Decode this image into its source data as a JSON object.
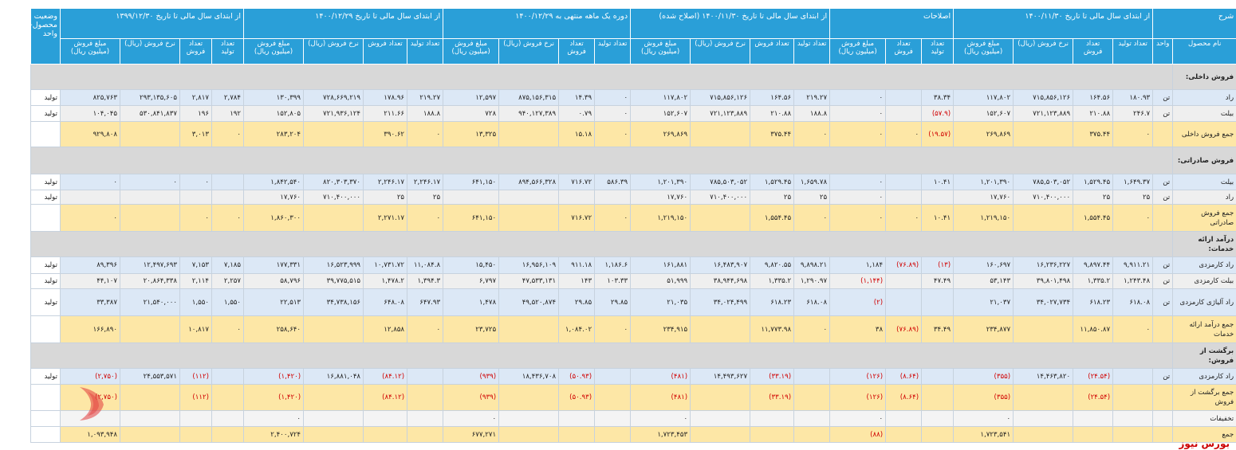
{
  "header": {
    "status": "وضعیت محصول- واحد",
    "description": "شرح",
    "groups": [
      "از ابتدای سال مالی تا تاریخ ۱۳۹۹/۱۲/۳۰",
      "از ابتدای سال مالی تا تاریخ ۱۴۰۰/۱۲/۲۹",
      "دوره یک ماهه منتهی به ۱۴۰۰/۱۲/۲۹",
      "از ابتدای سال مالی تا تاریخ ۱۴۰۰/۱۱/۳۰ (اصلاح شده)",
      "اصلاحات",
      "از ابتدای سال مالی تا تاریخ ۱۴۰۰/۱۱/۳۰"
    ],
    "columns": [
      "مبلغ فروش (میلیون ریال)",
      "نرخ فروش (ریال)",
      "تعداد فروش",
      "تعداد تولید",
      "مبلغ فروش (میلیون ریال)",
      "نرخ فروش (ریال)",
      "تعداد فروش",
      "تعداد تولید",
      "مبلغ فروش (میلیون ریال)",
      "نرخ فروش (ریال)",
      "تعداد فروش",
      "تعداد تولید",
      "مبلغ فروش (میلیون ریال)",
      "نرخ فروش (ریال)",
      "تعداد فروش",
      "تعداد تولید",
      "مبلغ فروش (میلیون ریال)",
      "تعداد فروش",
      "تعداد تولید",
      "مبلغ فروش (میلیون ریال)",
      "نرخ فروش (ریال)",
      "تعداد فروش",
      "تعداد تولید",
      "واحد",
      "نام محصول"
    ]
  },
  "table": {
    "rows": [
      [
        "فروش داخلی:"
      ],
      [
        "تولید",
        "۸۲۵,۷۶۳",
        "۲۹۳,۱۳۵,۶۰۵",
        "۲,۸۱۷",
        "۲,۷۸۴",
        "۱۳۰,۳۹۹",
        "۷۲۸,۶۶۹,۲۱۹",
        "۱۷۸.۹۶",
        "۲۱۹.۲۷",
        "۱۲,۵۹۷",
        "۸۷۵,۱۵۶,۳۱۵",
        "۱۴.۳۹",
        "۰",
        "۱۱۷,۸۰۲",
        "۷۱۵,۸۵۶,۱۲۶",
        "۱۶۴.۵۶",
        "۲۱۹.۲۷",
        "۰",
        null,
        "۳۸.۳۴",
        "۱۱۷,۸۰۲",
        "۷۱۵,۸۵۶,۱۲۶",
        "۱۶۴.۵۶",
        "۱۸۰.۹۳",
        "تن",
        "راد"
      ],
      [
        "تولید",
        "۱۰۴,۰۴۵",
        "۵۳۰,۸۴۱,۸۳۷",
        "۱۹۶",
        "۱۹۲",
        "۱۵۲,۸۰۵",
        "۷۲۱,۹۳۶,۱۲۴",
        "۲۱۱.۶۶",
        "۱۸۸.۸",
        "۷۲۸",
        "۹۴۰,۱۲۷,۳۸۹",
        "۰.۷۹",
        "۰",
        "۱۵۲,۶۰۷",
        "۷۲۱,۱۲۳,۸۸۹",
        "۲۱۰.۸۸",
        "۱۸۸.۸",
        "۰",
        null,
        "(۵۷.۹)",
        "۱۵۲,۶۰۷",
        "۷۲۱,۱۲۳,۸۸۹",
        "۲۱۰.۸۸",
        "۲۴۶.۷",
        "تن",
        "بیلت"
      ],
      [
        null,
        "۹۲۹,۸۰۸",
        null,
        "۳,۰۱۳",
        "۰",
        "۲۸۳,۲۰۴",
        null,
        "۳۹۰.۶۲",
        "۰",
        "۱۳,۳۲۵",
        null,
        "۱۵.۱۸",
        "۰",
        "۲۶۹,۸۶۹",
        null,
        "۳۷۵.۴۴",
        "۰",
        "۰",
        "۰",
        "(۱۹.۵۷)",
        "۲۶۹,۸۶۹",
        null,
        "۳۷۵.۴۴",
        "۰",
        null,
        "جمع فروش داخلی"
      ],
      [
        "فروش صادراتی:"
      ],
      [
        "تولید",
        "۰",
        "۰",
        "۰",
        null,
        "۱,۸۴۲,۵۴۰",
        "۸۲۰,۳۰۳,۳۷۰",
        "۲,۲۴۶.۱۷",
        "۲,۲۴۶.۱۷",
        "۶۴۱,۱۵۰",
        "۸۹۴,۵۶۶,۳۲۸",
        "۷۱۶.۷۲",
        "۵۸۶.۳۹",
        "۱,۲۰۱,۳۹۰",
        "۷۸۵,۵۰۳,۰۵۲",
        "۱,۵۲۹.۴۵",
        "۱,۶۵۹.۷۸",
        "۰",
        null,
        "۱۰.۴۱",
        "۱,۲۰۱,۳۹۰",
        "۷۸۵,۵۰۳,۰۵۲",
        "۱,۵۲۹.۴۵",
        "۱,۶۴۹.۳۷",
        "تن",
        "بیلت"
      ],
      [
        "تولید",
        null,
        null,
        null,
        null,
        "۱۷,۷۶۰",
        "۷۱۰,۴۰۰,۰۰۰",
        "۲۵",
        "۲۵",
        null,
        null,
        null,
        null,
        "۱۷,۷۶۰",
        "۷۱۰,۴۰۰,۰۰۰",
        "۲۵",
        "۲۵",
        "۰",
        null,
        null,
        "۱۷,۷۶۰",
        "۷۱۰,۴۰۰,۰۰۰",
        "۲۵",
        "۲۵",
        "تن",
        "راد"
      ],
      [
        null,
        "۰",
        null,
        "۰",
        "۰",
        "۱,۸۶۰,۳۰۰",
        null,
        "۲,۲۷۱.۱۷",
        "۰",
        "۶۴۱,۱۵۰",
        null,
        "۷۱۶.۷۲",
        "۰",
        "۱,۲۱۹,۱۵۰",
        null,
        "۱,۵۵۴.۴۵",
        "۰",
        "۰",
        "۰",
        "۱۰.۴۱",
        "۱,۲۱۹,۱۵۰",
        null,
        "۱,۵۵۴.۴۵",
        "۰",
        null,
        "جمع فروش صادراتی"
      ],
      [
        "درآمد ارائه خدمات:"
      ],
      [
        "تولید",
        "۸۹,۳۹۶",
        "۱۲,۴۹۷,۶۹۳",
        "۷,۱۵۳",
        "۷,۱۸۵",
        "۱۷۷,۳۳۱",
        "۱۶,۵۲۳,۹۹۹",
        "۱۰,۷۳۱.۷۲",
        "۱۱,۰۸۴.۸",
        "۱۵,۴۵۰",
        "۱۶,۹۵۶,۱۰۹",
        "۹۱۱.۱۸",
        "۱,۱۸۶.۶",
        "۱۶۱,۸۸۱",
        "۱۶,۴۸۳,۹۰۷",
        "۹,۸۲۰.۵۵",
        "۹,۸۹۸.۲۱",
        "۱,۱۸۴",
        "(۷۶.۸۹)",
        "(۱۳)",
        "۱۶۰,۶۹۷",
        "۱۶,۲۳۶,۲۲۷",
        "۹,۸۹۷.۴۴",
        "۹,۹۱۱.۲۱",
        "تن",
        "راد کارمزدی"
      ],
      [
        "تولید",
        "۴۴,۱۰۷",
        "۲۰,۸۶۴,۳۳۸",
        "۲,۱۱۴",
        "۲,۲۵۷",
        "۵۸,۷۹۶",
        "۳۹,۷۷۵,۵۱۵",
        "۱,۴۷۸.۲",
        "۱,۳۹۴.۳",
        "۶,۷۹۷",
        "۴۷,۵۳۳,۱۳۱",
        "۱۴۳",
        "۱۰۳.۳۳",
        "۵۱,۹۹۹",
        "۳۸,۹۴۴,۶۹۸",
        "۱,۳۳۵.۲",
        "۱,۲۹۰.۹۷",
        "(۱,۱۴۴)",
        null,
        "۴۷.۴۹",
        "۵۳,۱۴۳",
        "۳۹,۸۰۱,۴۹۸",
        "۱,۳۳۵.۲",
        "۱,۲۴۳.۴۸",
        "تن",
        "بیلت کارمزدی"
      ],
      [
        "تولید",
        "۳۳,۳۸۷",
        "۲۱,۵۴۰,۰۰۰",
        "۱,۵۵۰",
        "۱,۵۵۰",
        "۲۲,۵۱۳",
        "۳۴,۷۳۸,۱۵۶",
        "۶۴۸.۰۸",
        "۶۴۷.۹۳",
        "۱,۴۷۸",
        "۴۹,۵۲۰,۸۷۴",
        "۲۹.۸۵",
        "۲۹.۸۵",
        "۲۱,۰۳۵",
        "۳۴,۰۲۴,۴۹۹",
        "۶۱۸.۲۳",
        "۶۱۸.۰۸",
        "(۲)",
        null,
        null,
        "۲۱,۰۳۷",
        "۳۴,۰۲۷,۷۳۴",
        "۶۱۸.۲۳",
        "۶۱۸.۰۸",
        "تن",
        "راد آلیاژی کارمزدی"
      ],
      [
        null,
        "۱۶۶,۸۹۰",
        null,
        "۱۰,۸۱۷",
        "۰",
        "۲۵۸,۶۴۰",
        null,
        "۱۲,۸۵۸",
        "۰",
        "۲۳,۷۲۵",
        null,
        "۱,۰۸۴.۰۲",
        "۰",
        "۲۳۴,۹۱۵",
        null,
        "۱۱,۷۷۳.۹۸",
        "۰",
        "۳۸",
        "(۷۶.۸۹)",
        "۳۴.۴۹",
        "۲۳۴,۸۷۷",
        null,
        "۱۱,۸۵۰.۸۷",
        "۰",
        null,
        "جمع درآمد ارائه خدمات"
      ],
      [
        "برگشت از فروش:"
      ],
      [
        "تولید",
        "(۲,۷۵۰)",
        "۲۴,۵۵۳,۵۷۱",
        "(۱۱۲)",
        null,
        "(۱,۴۲۰)",
        "۱۶,۸۸۱,۰۴۸",
        "(۸۴.۱۲)",
        null,
        "(۹۳۹)",
        "۱۸,۴۳۶,۷۰۸",
        "(۵۰.۹۳)",
        null,
        "(۴۸۱)",
        "۱۴,۴۹۳,۶۲۷",
        "(۳۳.۱۹)",
        null,
        "(۱۲۶)",
        "(۸.۶۴)",
        null,
        "(۳۵۵)",
        "۱۴,۴۶۳,۸۲۰",
        "(۲۴.۵۴)",
        null,
        "تن",
        "راد کارمزدی"
      ],
      [
        null,
        "(۲,۷۵۰)",
        null,
        "(۱۱۲)",
        null,
        "(۱,۴۲۰)",
        null,
        "(۸۴.۱۲)",
        null,
        "(۹۳۹)",
        null,
        "(۵۰.۹۳)",
        null,
        "(۴۸۱)",
        null,
        "(۳۳.۱۹)",
        null,
        "(۱۲۶)",
        "(۸.۶۴)",
        null,
        "(۳۵۵)",
        null,
        "(۲۴.۵۴)",
        null,
        null,
        "جمع برگشت از فروش"
      ],
      [
        null,
        null,
        null,
        null,
        null,
        "۰",
        null,
        null,
        null,
        "۰",
        null,
        null,
        null,
        "۰",
        null,
        null,
        null,
        "۰",
        null,
        null,
        "۰",
        null,
        null,
        null,
        null,
        "تخفیفات"
      ],
      [
        null,
        "۱,۰۹۳,۹۴۸",
        null,
        null,
        null,
        "۲,۴۰۰,۷۲۴",
        null,
        null,
        null,
        "۶۷۷,۲۷۱",
        null,
        null,
        null,
        "۱,۷۲۳,۴۵۳",
        null,
        null,
        null,
        "(۸۸)",
        null,
        null,
        "۱,۷۲۳,۵۴۱",
        null,
        null,
        null,
        null,
        "جمع"
      ]
    ]
  },
  "brand": "بورس نیوز"
}
